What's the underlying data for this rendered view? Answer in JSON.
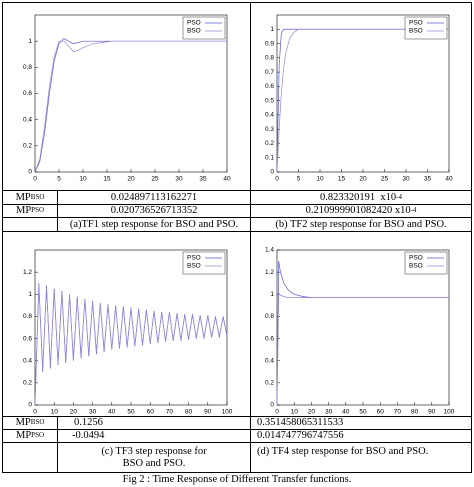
{
  "chart_data": [
    {
      "type": "line",
      "xlim": [
        0,
        40
      ],
      "ylim": [
        0,
        1.2
      ],
      "xticks": [
        0,
        5,
        10,
        15,
        20,
        25,
        30,
        35,
        40
      ],
      "yticks": [
        0,
        0.2,
        0.4,
        0.6,
        0.8,
        1
      ],
      "x": [
        0,
        1,
        2,
        3,
        4,
        5,
        6,
        7,
        8,
        9,
        10,
        12,
        14,
        16,
        20,
        25,
        30,
        35,
        40
      ],
      "series": [
        {
          "name": "PSO",
          "color": "#5a5ad8",
          "values": [
            0,
            0.08,
            0.3,
            0.6,
            0.85,
            0.98,
            1.02,
            1.0,
            0.98,
            0.99,
            1.0,
            1.0,
            1.0,
            1.0,
            1.0,
            1.0,
            1.0,
            1.0,
            1.0
          ]
        },
        {
          "name": "BSO",
          "color": "#9a88d8",
          "values": [
            0,
            0.1,
            0.35,
            0.65,
            0.88,
            1.0,
            1.0,
            0.96,
            0.92,
            0.93,
            0.95,
            0.98,
            0.99,
            1.0,
            1.0,
            1.0,
            1.0,
            1.0,
            1.0
          ]
        }
      ]
    },
    {
      "type": "line",
      "xlim": [
        0,
        40
      ],
      "ylim": [
        0,
        1.1
      ],
      "xticks": [
        0,
        5,
        10,
        15,
        20,
        25,
        30,
        35,
        40
      ],
      "yticks": [
        0,
        0.1,
        0.2,
        0.3,
        0.4,
        0.5,
        0.6,
        0.7,
        0.8,
        0.9,
        1
      ],
      "x": [
        0,
        0.5,
        1,
        1.5,
        2,
        3,
        4,
        5,
        10,
        20,
        30,
        40
      ],
      "series": [
        {
          "name": "PSO",
          "color": "#5a5ad8",
          "values": [
            0,
            0.75,
            0.97,
            1.0,
            1.0,
            1.0,
            1.0,
            1.0,
            1.0,
            1.0,
            1.0,
            1.0
          ]
        },
        {
          "name": "BSO",
          "color": "#9a88d8",
          "values": [
            0,
            0.3,
            0.55,
            0.72,
            0.83,
            0.94,
            0.98,
            1.0,
            1.0,
            1.0,
            1.0,
            1.0
          ]
        }
      ]
    },
    {
      "type": "line",
      "xlim": [
        0,
        100
      ],
      "ylim": [
        0,
        1.4
      ],
      "xticks": [
        0,
        10,
        20,
        30,
        40,
        50,
        60,
        70,
        80,
        90,
        100
      ],
      "yticks": [
        0,
        0.2,
        0.4,
        0.6,
        0.8,
        1,
        1.2
      ],
      "x": [
        0,
        2,
        4,
        6,
        8,
        10,
        12,
        14,
        16,
        18,
        20,
        22,
        24,
        26,
        28,
        30,
        32,
        34,
        36,
        38,
        40,
        42,
        44,
        46,
        48,
        50,
        52,
        54,
        56,
        58,
        60,
        62,
        64,
        66,
        68,
        70,
        72,
        74,
        76,
        78,
        80,
        82,
        84,
        86,
        88,
        90,
        92,
        94,
        96,
        98,
        100
      ],
      "series": [
        {
          "name": "PSO",
          "color": "#5a5ad8",
          "values": [
            0,
            1.1,
            0.3,
            1.08,
            0.33,
            1.05,
            0.36,
            1.03,
            0.38,
            1.0,
            0.4,
            0.98,
            0.42,
            0.96,
            0.44,
            0.94,
            0.46,
            0.92,
            0.48,
            0.91,
            0.5,
            0.9,
            0.51,
            0.89,
            0.52,
            0.88,
            0.53,
            0.87,
            0.54,
            0.86,
            0.55,
            0.85,
            0.56,
            0.84,
            0.57,
            0.84,
            0.58,
            0.83,
            0.58,
            0.82,
            0.59,
            0.82,
            0.6,
            0.81,
            0.6,
            0.81,
            0.61,
            0.8,
            0.61,
            0.8,
            0.62
          ]
        },
        {
          "name": "BSO",
          "color": "#9a88d8",
          "values": [
            0,
            1.08,
            0.32,
            1.06,
            0.35,
            1.03,
            0.38,
            1.01,
            0.4,
            0.99,
            0.42,
            0.97,
            0.44,
            0.95,
            0.46,
            0.93,
            0.48,
            0.91,
            0.5,
            0.9,
            0.51,
            0.89,
            0.52,
            0.88,
            0.53,
            0.87,
            0.54,
            0.86,
            0.55,
            0.85,
            0.56,
            0.84,
            0.57,
            0.83,
            0.58,
            0.83,
            0.59,
            0.82,
            0.59,
            0.81,
            0.6,
            0.81,
            0.61,
            0.8,
            0.61,
            0.8,
            0.62,
            0.79,
            0.62,
            0.79,
            0.63
          ]
        }
      ]
    },
    {
      "type": "line",
      "xlim": [
        0,
        100
      ],
      "ylim": [
        0,
        1.4
      ],
      "xticks": [
        0,
        10,
        20,
        30,
        40,
        50,
        60,
        70,
        80,
        90,
        100
      ],
      "yticks": [
        0,
        0.2,
        0.4,
        0.6,
        0.8,
        1,
        1.2,
        1.4
      ],
      "x": [
        0,
        1,
        2,
        4,
        6,
        8,
        10,
        15,
        20,
        30,
        50,
        100
      ],
      "series": [
        {
          "name": "PSO",
          "color": "#5a5ad8",
          "values": [
            0,
            1.3,
            1.2,
            1.1,
            1.05,
            1.02,
            1.0,
            0.98,
            0.97,
            0.97,
            0.97,
            0.97
          ]
        },
        {
          "name": "BSO",
          "color": "#9a88d8",
          "values": [
            0,
            1.01,
            0.99,
            0.98,
            0.97,
            0.97,
            0.97,
            0.97,
            0.97,
            0.97,
            0.97,
            0.97
          ]
        }
      ]
    }
  ],
  "table": {
    "top": {
      "rows": [
        {
          "label": {
            "main": "MP",
            "sub": "BSO"
          },
          "left": "0.024897113162271",
          "right": {
            "value": "0.823320191",
            "base": "x10",
            "exp": "-4"
          }
        },
        {
          "label": {
            "main": "MP",
            "sub": "PSO"
          },
          "left": "0.020736526713352",
          "right": {
            "value": "0.210999901082420",
            "base": "x10",
            "exp": "-4"
          }
        }
      ],
      "captions": [
        "(a)TF1 step response for BSO and PSO.",
        "(b) TF2 step response for BSO and PSO."
      ]
    },
    "bottom": {
      "rows": [
        {
          "label": {
            "main": "MP",
            "sub": "BSO"
          },
          "left": "0.1256",
          "right": "0.351458065311533"
        },
        {
          "label": {
            "main": "MP",
            "sub": "PSO"
          },
          "left": "-0.0494",
          "right": "0.014747796747556"
        }
      ],
      "captions": [
        "(c) TF3 step response for BSO and PSO.",
        "(d) TF4 step response for BSO and PSO."
      ]
    }
  },
  "figure_caption": "Fig 2 : Time Response of Different Transfer functions."
}
